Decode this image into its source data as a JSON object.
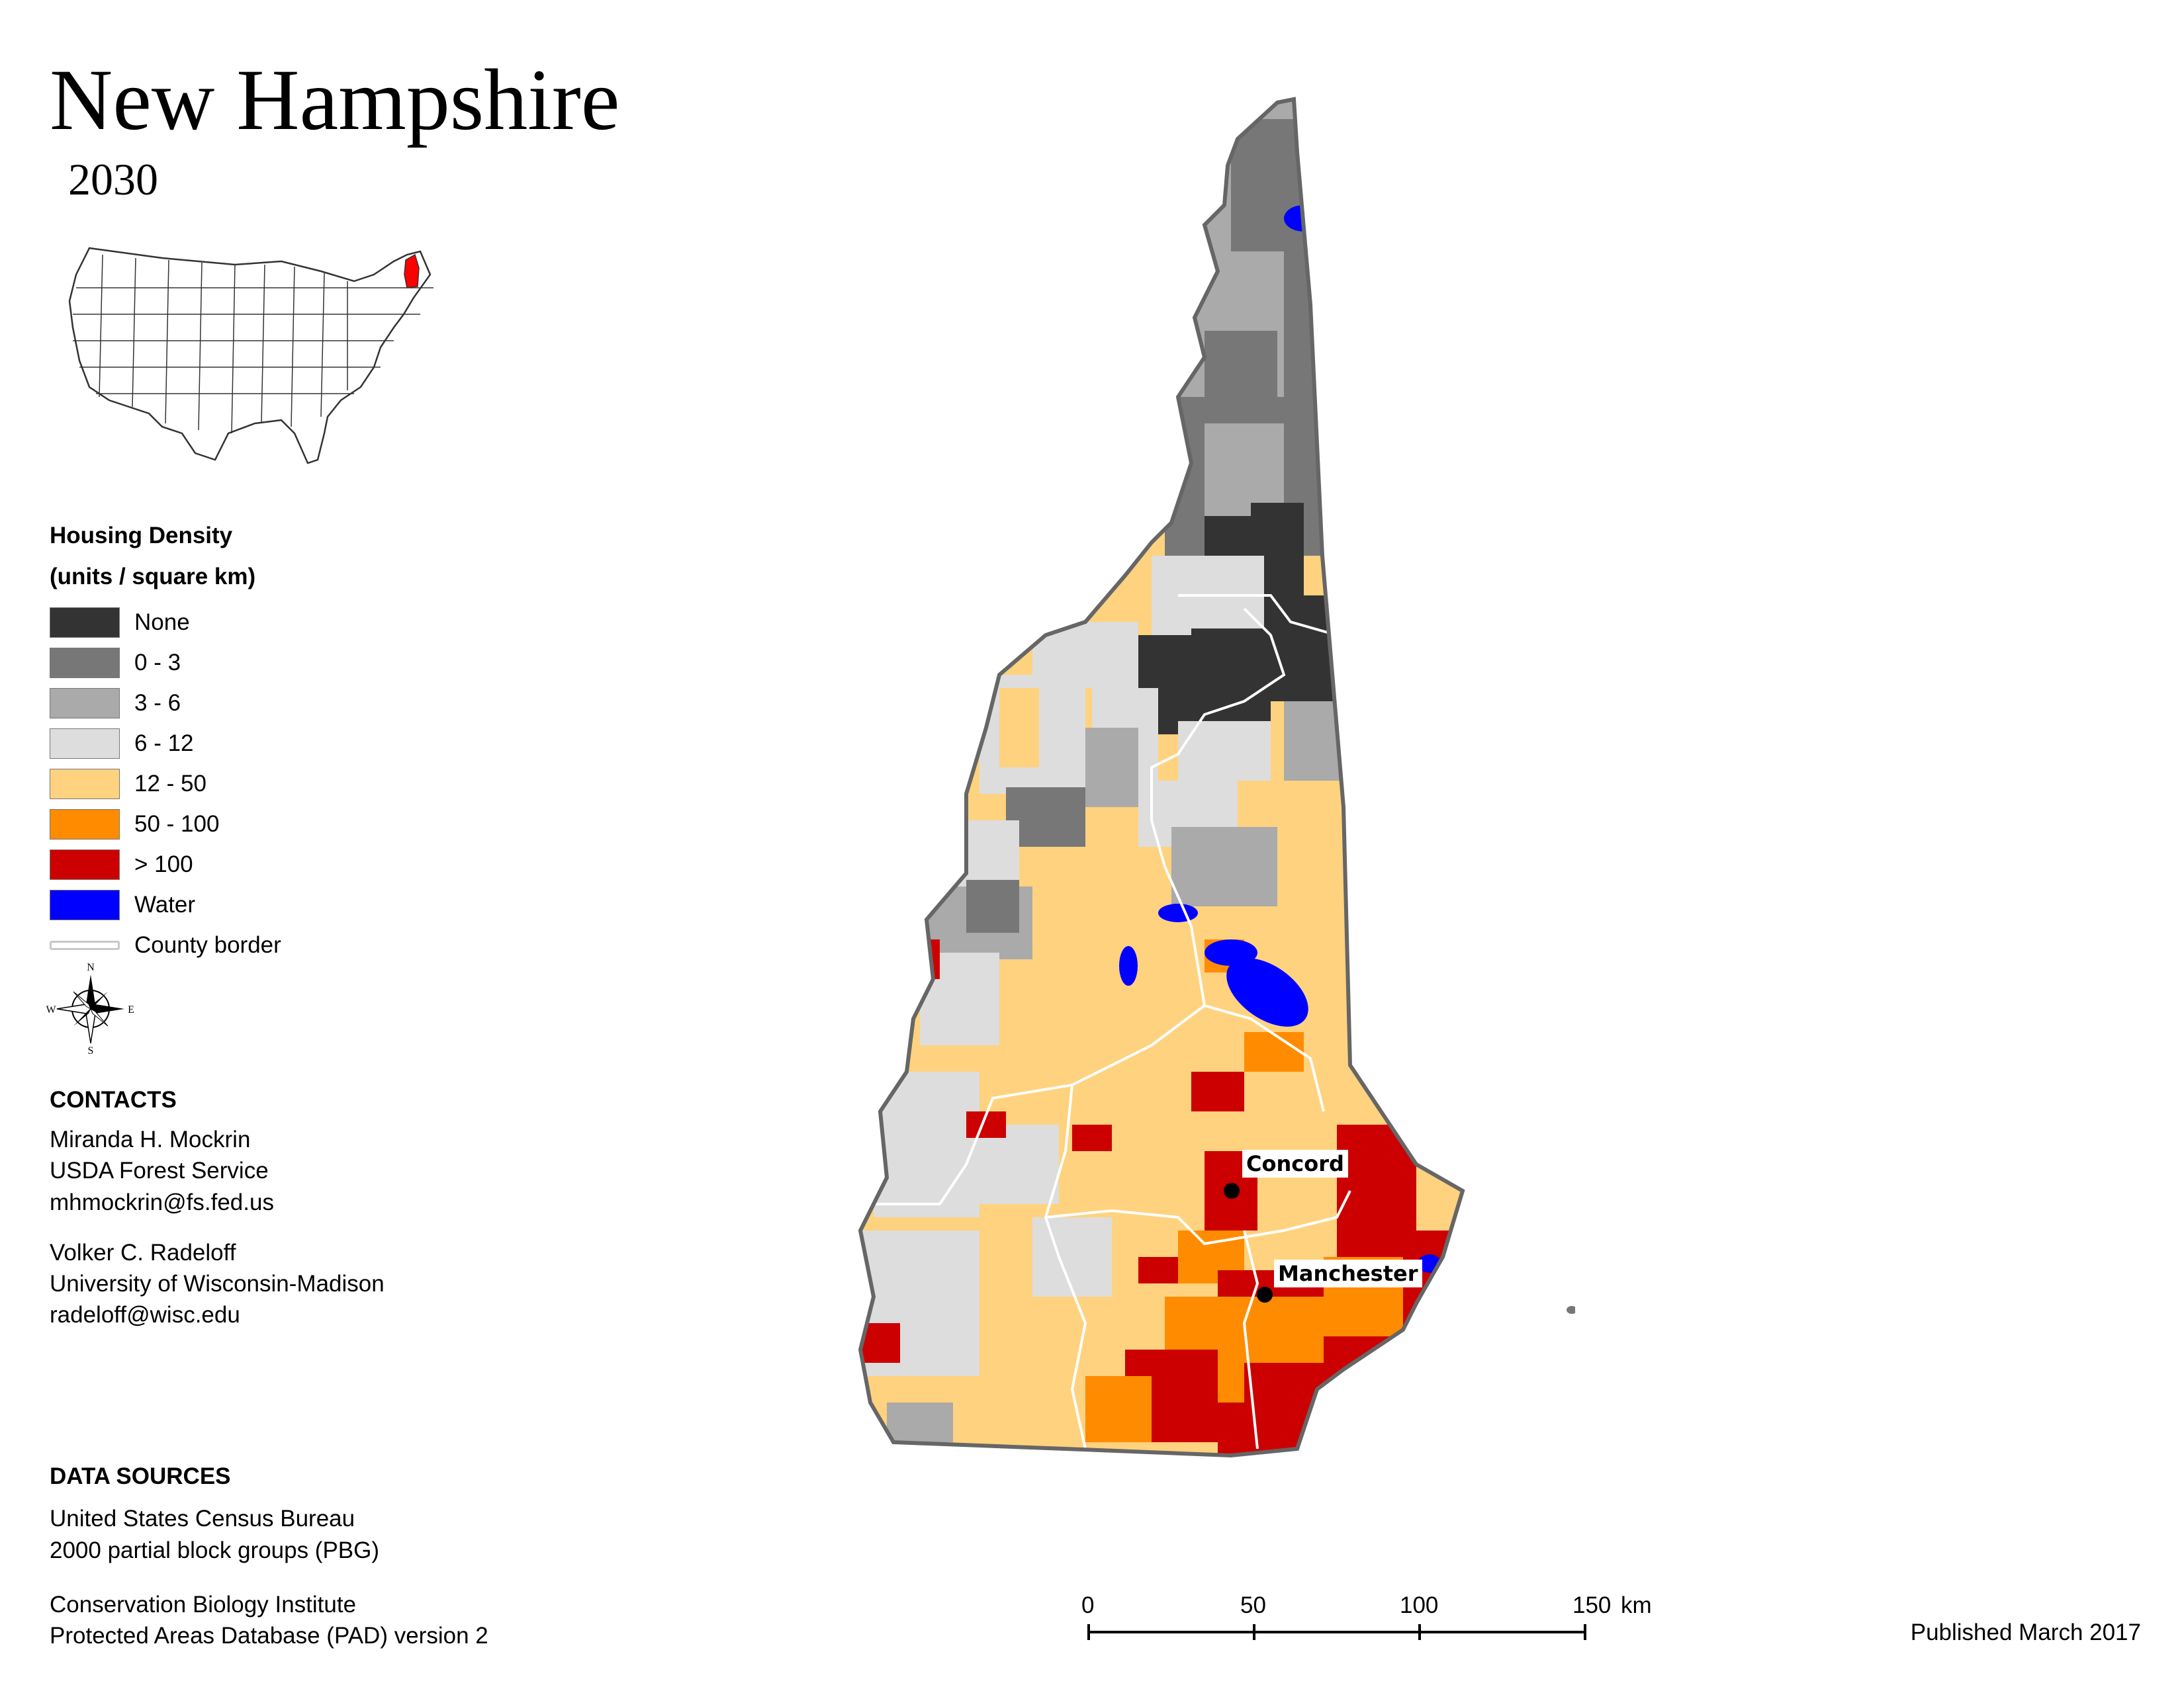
{
  "header": {
    "title": "New Hampshire",
    "year": "2030"
  },
  "legend": {
    "title_line1": "Housing Density",
    "title_line2": "(units / square km)",
    "items": [
      {
        "label": "None",
        "color": "#333333"
      },
      {
        "label": "0 - 3",
        "color": "#777777"
      },
      {
        "label": "3 - 6",
        "color": "#aaaaaa"
      },
      {
        "label": "6 - 12",
        "color": "#dddddd"
      },
      {
        "label": "12 - 50",
        "color": "#ffd27f"
      },
      {
        "label": "50 - 100",
        "color": "#ff8c00"
      },
      {
        "label": "> 100",
        "color": "#cc0000"
      },
      {
        "label": "Water",
        "color": "#0000ff"
      },
      {
        "label": "County border",
        "color": "#c8c8c8"
      }
    ]
  },
  "compass": {
    "n": "N",
    "s": "S",
    "e": "E",
    "w": "W"
  },
  "contacts": {
    "heading": "CONTACTS",
    "people": [
      {
        "name": "Miranda H. Mockrin",
        "org": "USDA Forest Service",
        "email": "mhmockrin@fs.fed.us"
      },
      {
        "name": "Volker C. Radeloff",
        "org": "University of Wisconsin-Madison",
        "email": "radeloff@wisc.edu"
      }
    ]
  },
  "data_sources": {
    "heading": "DATA SOURCES",
    "lines": [
      "United States Census Bureau",
      "2000 partial block groups (PBG)",
      "Conservation Biology Institute",
      "Protected Areas Database (PAD) version 2"
    ]
  },
  "map": {
    "cities": [
      {
        "name": "Concord"
      },
      {
        "name": "Manchester"
      }
    ]
  },
  "scale_bar": {
    "ticks": [
      "0",
      "50",
      "100",
      "150"
    ],
    "unit": "km"
  },
  "footer": {
    "published": "Published March 2017"
  }
}
